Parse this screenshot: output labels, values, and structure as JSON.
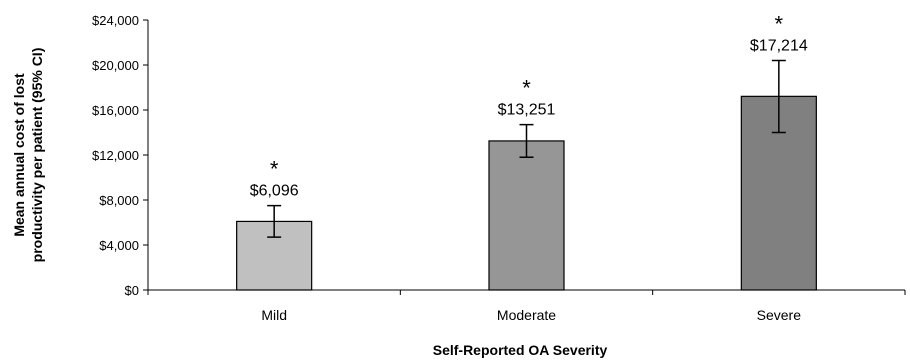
{
  "chart_data": {
    "type": "bar",
    "categories": [
      "Mild",
      "Moderate",
      "Severe"
    ],
    "values": [
      6096,
      13251,
      17214
    ],
    "ci_lower": [
      4700,
      11800,
      14000
    ],
    "ci_upper": [
      7500,
      14700,
      20400
    ],
    "data_labels": [
      "$6,096",
      "$13,251",
      "$17,214"
    ],
    "annotations": [
      "*",
      "*",
      "*"
    ],
    "bar_colors": [
      "#c0c0c0",
      "#969696",
      "#808080"
    ],
    "xlabel": "Self-Reported OA Severity",
    "ylabel_lines": [
      "Mean annual cost of lost",
      "productivity per patient (95% CI)"
    ],
    "ylim": [
      0,
      24000
    ],
    "yticks": [
      0,
      4000,
      8000,
      12000,
      16000,
      20000,
      24000
    ],
    "ytick_labels": [
      "$0",
      "$4,000",
      "$8,000",
      "$12,000",
      "$16,000",
      "$20,000",
      "$24,000"
    ],
    "grid": false,
    "legend": "none"
  }
}
